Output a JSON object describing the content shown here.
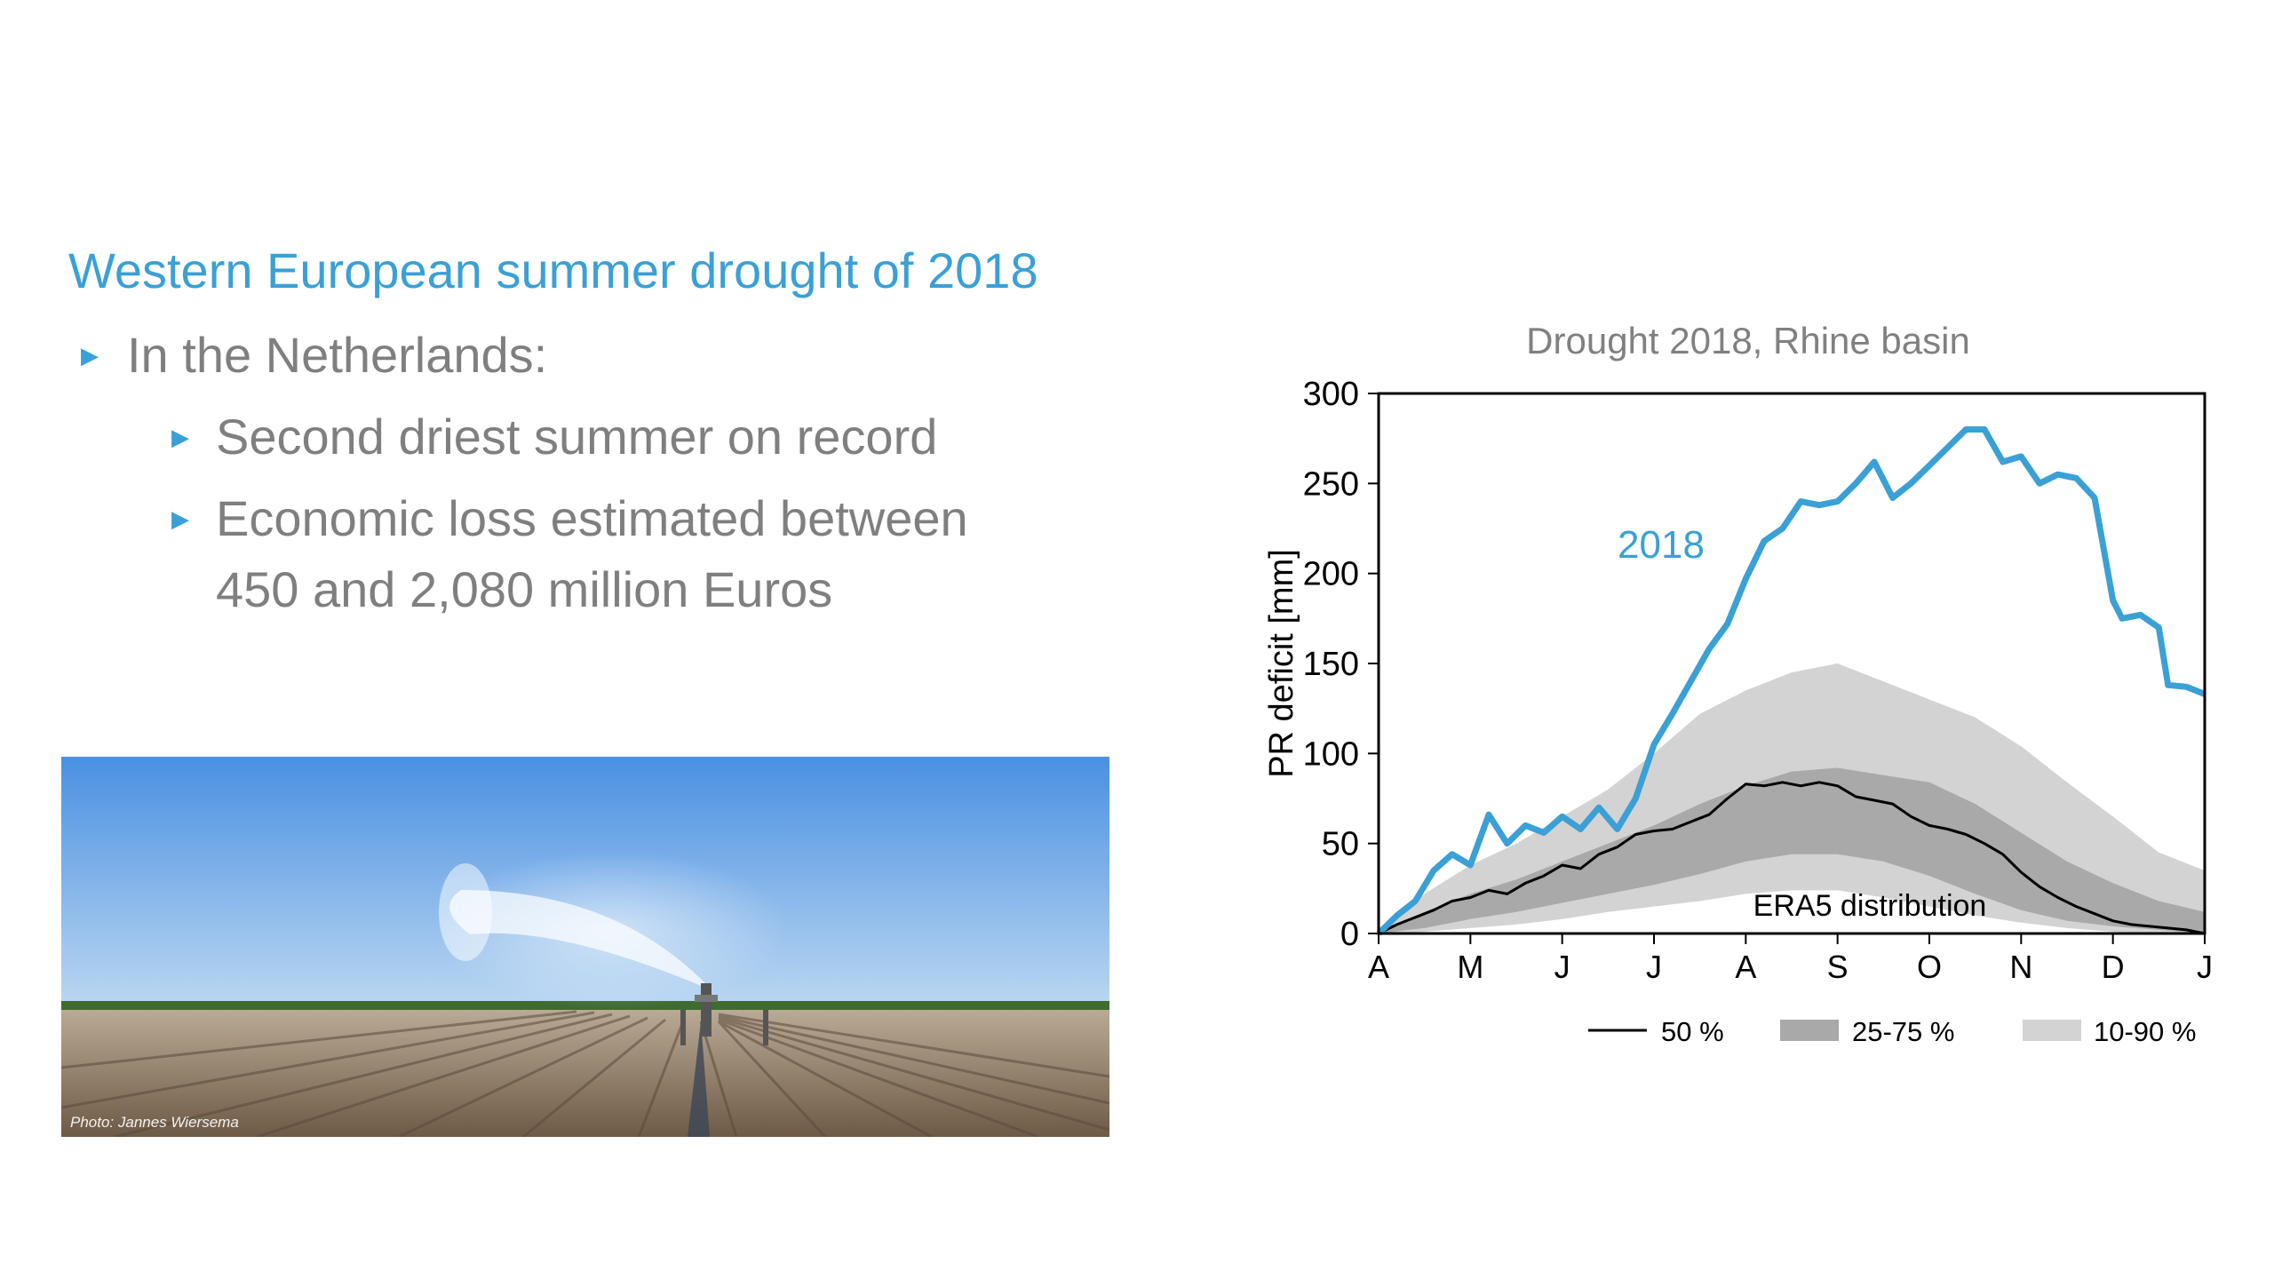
{
  "slide": {
    "title": "Western European summer drought of 2018",
    "bullets": [
      "In the Netherlands:",
      "Second driest summer on record",
      "Economic loss estimated between 450 and 2,080 million Euros"
    ],
    "bullet3_lines": [
      "Economic loss estimated between",
      "450 and 2,080 million Euros"
    ],
    "photo_credit": "Photo: Jannes Wiersema"
  },
  "colors": {
    "accent": "#3aa0d5",
    "text_gray": "#7f7f7f",
    "band_25_75": "#a9a9a9",
    "band_10_90": "#d3d3d3",
    "median": "#000000"
  },
  "chart_data": {
    "type": "area",
    "title": "Drought 2018, Rhine basin",
    "ylabel": "PR deficit [mm]",
    "xlabel": "",
    "ylim": [
      0,
      300
    ],
    "yticks": [
      0,
      50,
      100,
      150,
      200,
      250,
      300
    ],
    "xlim": [
      0,
      9
    ],
    "xticks": [
      {
        "pos": 0,
        "label": "A"
      },
      {
        "pos": 1,
        "label": "M"
      },
      {
        "pos": 2,
        "label": "J"
      },
      {
        "pos": 3,
        "label": "J"
      },
      {
        "pos": 4,
        "label": "A"
      },
      {
        "pos": 5,
        "label": "S"
      },
      {
        "pos": 6,
        "label": "O"
      },
      {
        "pos": 7,
        "label": "N"
      },
      {
        "pos": 8,
        "label": "D"
      },
      {
        "pos": 9,
        "label": "J"
      }
    ],
    "grid": false,
    "legend": {
      "placement": "bottom",
      "entries": [
        "50 %",
        "25-75 %",
        "10-90 %"
      ]
    },
    "annotations": {
      "series_label": "2018",
      "distribution_label": "ERA5 distribution"
    },
    "series": [
      {
        "name": "2018",
        "x": [
          0,
          0.2,
          0.4,
          0.6,
          0.8,
          1.0,
          1.2,
          1.4,
          1.6,
          1.8,
          2.0,
          2.2,
          2.4,
          2.6,
          2.8,
          3.0,
          3.2,
          3.4,
          3.6,
          3.8,
          4.0,
          4.2,
          4.4,
          4.6,
          4.8,
          5.0,
          5.2,
          5.4,
          5.6,
          5.8,
          6.0,
          6.2,
          6.4,
          6.6,
          6.8,
          7.0,
          7.2,
          7.4,
          7.6,
          7.8,
          8.0,
          8.1,
          8.3,
          8.5,
          8.6,
          8.8,
          9.0
        ],
        "values": [
          0,
          10,
          18,
          35,
          44,
          38,
          66,
          50,
          60,
          56,
          65,
          58,
          70,
          58,
          75,
          105,
          122,
          140,
          158,
          172,
          197,
          218,
          225,
          240,
          238,
          240,
          250,
          262,
          242,
          250,
          260,
          270,
          280,
          280,
          262,
          265,
          250,
          255,
          253,
          242,
          185,
          175,
          177,
          170,
          138,
          137,
          133
        ]
      },
      {
        "name": "50 %",
        "x": [
          0,
          0.2,
          0.4,
          0.6,
          0.8,
          1.0,
          1.2,
          1.4,
          1.6,
          1.8,
          2.0,
          2.2,
          2.4,
          2.6,
          2.8,
          3.0,
          3.2,
          3.4,
          3.6,
          3.8,
          4.0,
          4.2,
          4.4,
          4.6,
          4.8,
          5.0,
          5.2,
          5.4,
          5.6,
          5.8,
          6.0,
          6.2,
          6.4,
          6.6,
          6.8,
          7.0,
          7.2,
          7.4,
          7.6,
          7.8,
          8.0,
          8.2,
          8.4,
          8.6,
          8.8,
          9.0
        ],
        "values": [
          0,
          5,
          9,
          13,
          18,
          20,
          24,
          22,
          28,
          32,
          38,
          36,
          44,
          48,
          55,
          57,
          58,
          62,
          66,
          75,
          83,
          82,
          84,
          82,
          84,
          82,
          76,
          74,
          72,
          65,
          60,
          58,
          55,
          50,
          44,
          34,
          26,
          20,
          15,
          11,
          7,
          5,
          4,
          3,
          2,
          0
        ]
      },
      {
        "name": "25-75 %",
        "x": [
          0,
          0.5,
          1,
          1.5,
          2,
          2.5,
          3,
          3.5,
          4,
          4.5,
          5,
          5.5,
          6,
          6.5,
          7,
          7.5,
          8,
          8.5,
          9
        ],
        "lower": [
          0,
          3,
          8,
          12,
          17,
          22,
          27,
          33,
          40,
          44,
          44,
          40,
          32,
          22,
          13,
          7,
          4,
          2,
          0
        ],
        "upper": [
          0,
          12,
          22,
          30,
          40,
          50,
          60,
          72,
          82,
          90,
          92,
          88,
          84,
          72,
          56,
          40,
          28,
          18,
          12
        ]
      },
      {
        "name": "10-90 %",
        "x": [
          0,
          0.5,
          1,
          1.5,
          2,
          2.5,
          3,
          3.5,
          4,
          4.5,
          5,
          5.5,
          6,
          6.5,
          7,
          7.5,
          8,
          8.5,
          9
        ],
        "lower": [
          0,
          1,
          3,
          5,
          8,
          12,
          15,
          18,
          22,
          24,
          24,
          20,
          15,
          10,
          6,
          3,
          1,
          0,
          0
        ],
        "upper": [
          0,
          22,
          38,
          50,
          65,
          80,
          100,
          122,
          135,
          145,
          150,
          140,
          130,
          120,
          104,
          84,
          65,
          45,
          35
        ]
      }
    ]
  }
}
